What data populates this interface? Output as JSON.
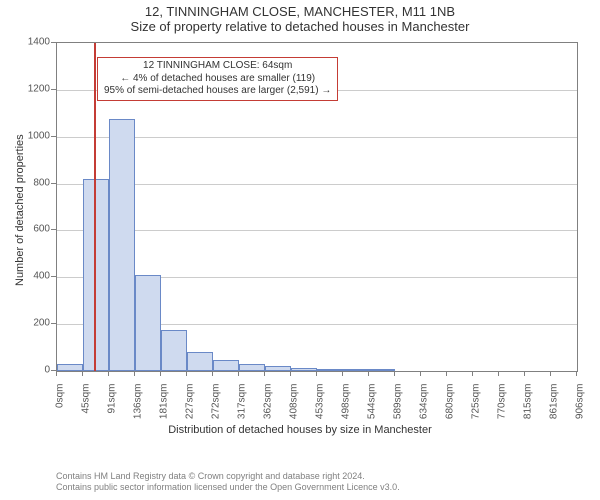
{
  "title_line1": "12, TINNINGHAM CLOSE, MANCHESTER, M11 1NB",
  "title_line2": "Size of property relative to detached houses in Manchester",
  "y_axis_label": "Number of detached properties",
  "x_axis_label": "Distribution of detached houses by size in Manchester",
  "footer_line1": "Contains HM Land Registry data © Crown copyright and database right 2024.",
  "footer_line2": "Contains public sector information licensed under the Open Government Licence v3.0.",
  "annotation": {
    "line1": "12 TINNINGHAM CLOSE: 64sqm",
    "line2": "← 4% of detached houses are smaller (119)",
    "line3": "95% of semi-detached houses are larger (2,591) →"
  },
  "chart": {
    "type": "histogram",
    "ylim": [
      0,
      1400
    ],
    "yticks": [
      0,
      200,
      400,
      600,
      800,
      1000,
      1200,
      1400
    ],
    "x_categories": [
      "0sqm",
      "45sqm",
      "91sqm",
      "136sqm",
      "181sqm",
      "227sqm",
      "272sqm",
      "317sqm",
      "362sqm",
      "408sqm",
      "453sqm",
      "498sqm",
      "544sqm",
      "589sqm",
      "634sqm",
      "680sqm",
      "725sqm",
      "770sqm",
      "815sqm",
      "861sqm",
      "906sqm"
    ],
    "x_max_value": 906,
    "marker_value": 64,
    "marker_color": "#c43c35",
    "bar_fill": "#cfdaef",
    "bar_stroke": "#6a89c7",
    "grid_color": "#cccccc",
    "axis_color": "#808080",
    "text_color": "#333333",
    "bars": [
      {
        "x0": 0,
        "x1": 45,
        "value": 30
      },
      {
        "x0": 45,
        "x1": 91,
        "value": 820
      },
      {
        "x0": 91,
        "x1": 136,
        "value": 1075
      },
      {
        "x0": 136,
        "x1": 181,
        "value": 410
      },
      {
        "x0": 181,
        "x1": 227,
        "value": 175
      },
      {
        "x0": 227,
        "x1": 272,
        "value": 80
      },
      {
        "x0": 272,
        "x1": 317,
        "value": 45
      },
      {
        "x0": 317,
        "x1": 362,
        "value": 30
      },
      {
        "x0": 362,
        "x1": 408,
        "value": 20
      },
      {
        "x0": 408,
        "x1": 453,
        "value": 15
      },
      {
        "x0": 453,
        "x1": 498,
        "value": 10
      },
      {
        "x0": 498,
        "x1": 544,
        "value": 10
      },
      {
        "x0": 544,
        "x1": 589,
        "value": 5
      }
    ]
  }
}
